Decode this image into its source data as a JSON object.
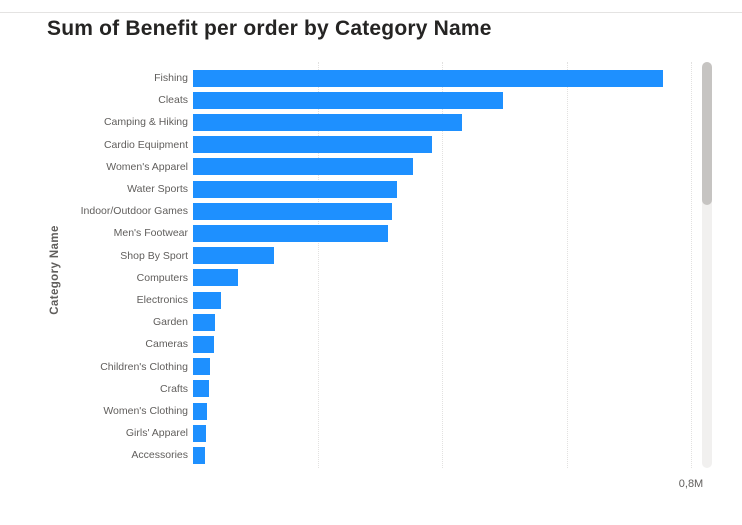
{
  "chart": {
    "title": "Sum of Benefit per order by Category Name",
    "y_axis_label": "Category Name",
    "x_tick_label": "0,8M"
  },
  "colors": {
    "bar": "#1E90FF",
    "title_text": "#252423",
    "axis_text": "#605E5C",
    "gridline": "#E2E1E0",
    "scroll_track": "#F1F0EF",
    "scroll_thumb": "#C6C4C2"
  },
  "chart_data": {
    "type": "bar",
    "orientation": "horizontal",
    "title": "Sum of Benefit per order by Category Name",
    "xlabel": "",
    "ylabel": "Category Name",
    "value_unit": "M",
    "xlim": [
      0,
      0.81
    ],
    "x_ticks": [
      0.2,
      0.4,
      0.6,
      0.8
    ],
    "visible_x_tick_labels": [
      "0,8M"
    ],
    "grid": "dotted-vertical",
    "legend": "none",
    "categories": [
      "Fishing",
      "Cleats",
      "Camping & Hiking",
      "Cardio Equipment",
      "Women's Apparel",
      "Water Sports",
      "Indoor/Outdoor Games",
      "Men's Footwear",
      "Shop By Sport",
      "Computers",
      "Electronics",
      "Garden",
      "Cameras",
      "Children's Clothing",
      "Crafts",
      "Women's Clothing",
      "Girls' Apparel",
      "Accessories"
    ],
    "values": [
      0.755,
      0.498,
      0.432,
      0.384,
      0.353,
      0.328,
      0.32,
      0.313,
      0.13,
      0.072,
      0.045,
      0.035,
      0.033,
      0.027,
      0.026,
      0.022,
      0.021,
      0.02
    ]
  }
}
